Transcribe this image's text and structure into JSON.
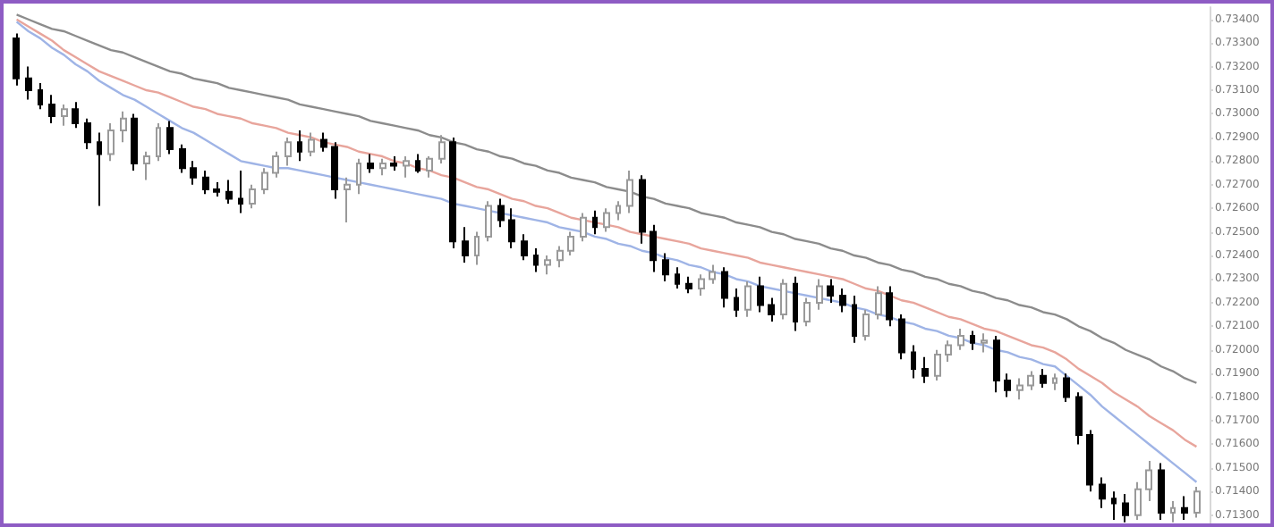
{
  "chart_data": {
    "type": "candlestick",
    "categories": [
      null,
      null,
      null,
      null,
      null,
      null,
      null,
      null,
      null,
      null,
      null,
      null,
      null,
      null,
      null,
      null,
      null,
      null,
      null,
      null,
      null,
      null,
      null,
      null,
      null,
      null,
      null,
      null,
      null,
      null,
      null,
      null,
      null,
      null,
      null,
      null,
      null,
      null,
      null,
      null,
      null,
      null,
      null,
      null,
      null,
      null,
      null,
      null,
      null,
      null,
      null,
      null,
      null,
      null,
      null,
      null,
      null,
      null,
      null,
      null,
      null,
      null,
      null,
      null,
      null,
      null,
      null,
      null,
      null,
      null,
      null,
      null,
      null,
      null,
      null,
      null,
      null,
      null,
      null,
      null,
      null,
      null,
      null,
      null,
      null,
      null,
      null,
      null,
      null,
      null,
      null,
      null,
      null,
      null,
      null,
      null,
      null,
      null,
      null,
      null,
      null
    ],
    "ohlc": [
      [
        0.7332,
        0.7334,
        0.7312,
        0.7315
      ],
      [
        0.7315,
        0.732,
        0.7306,
        0.731
      ],
      [
        0.731,
        0.7313,
        0.7302,
        0.7304
      ],
      [
        0.7304,
        0.7308,
        0.7296,
        0.7299
      ],
      [
        0.7299,
        0.7304,
        0.7295,
        0.7302
      ],
      [
        0.7302,
        0.7305,
        0.7294,
        0.7296
      ],
      [
        0.7296,
        0.7298,
        0.7285,
        0.7288
      ],
      [
        0.7288,
        0.7292,
        0.7261,
        0.7283
      ],
      [
        0.7283,
        0.7296,
        0.728,
        0.7293
      ],
      [
        0.7293,
        0.7301,
        0.7288,
        0.7298
      ],
      [
        0.7298,
        0.73,
        0.7276,
        0.7279
      ],
      [
        0.7279,
        0.7284,
        0.7272,
        0.7282
      ],
      [
        0.7282,
        0.7296,
        0.728,
        0.7294
      ],
      [
        0.7294,
        0.7297,
        0.7283,
        0.7285
      ],
      [
        0.7285,
        0.7287,
        0.7275,
        0.7277
      ],
      [
        0.7277,
        0.728,
        0.727,
        0.7273
      ],
      [
        0.7273,
        0.7276,
        0.7266,
        0.7268
      ],
      [
        0.7268,
        0.7271,
        0.7265,
        0.7267
      ],
      [
        0.7267,
        0.7272,
        0.7262,
        0.7264
      ],
      [
        0.7264,
        0.7276,
        0.7258,
        0.7262
      ],
      [
        0.7262,
        0.727,
        0.726,
        0.7268
      ],
      [
        0.7268,
        0.7277,
        0.7266,
        0.7275
      ],
      [
        0.7275,
        0.7284,
        0.7273,
        0.7282
      ],
      [
        0.7282,
        0.729,
        0.7278,
        0.7288
      ],
      [
        0.7288,
        0.7293,
        0.728,
        0.7284
      ],
      [
        0.7284,
        0.7292,
        0.7282,
        0.7289
      ],
      [
        0.7289,
        0.7292,
        0.7284,
        0.7286
      ],
      [
        0.7286,
        0.7288,
        0.7264,
        0.7268
      ],
      [
        0.7268,
        0.7273,
        0.7254,
        0.727
      ],
      [
        0.727,
        0.7281,
        0.7266,
        0.7279
      ],
      [
        0.7279,
        0.7283,
        0.7275,
        0.7277
      ],
      [
        0.7277,
        0.7281,
        0.7274,
        0.7279
      ],
      [
        0.7279,
        0.7282,
        0.7276,
        0.7278
      ],
      [
        0.7278,
        0.7282,
        0.7273,
        0.728
      ],
      [
        0.728,
        0.7283,
        0.7275,
        0.7276
      ],
      [
        0.7276,
        0.7282,
        0.7273,
        0.7281
      ],
      [
        0.7281,
        0.7291,
        0.7279,
        0.7288
      ],
      [
        0.7288,
        0.729,
        0.7243,
        0.7246
      ],
      [
        0.7246,
        0.7252,
        0.7237,
        0.724
      ],
      [
        0.724,
        0.725,
        0.7236,
        0.7248
      ],
      [
        0.7248,
        0.7263,
        0.7246,
        0.7261
      ],
      [
        0.7261,
        0.7264,
        0.7252,
        0.7255
      ],
      [
        0.7255,
        0.726,
        0.7243,
        0.7246
      ],
      [
        0.7246,
        0.7249,
        0.7238,
        0.724
      ],
      [
        0.724,
        0.7243,
        0.7233,
        0.7236
      ],
      [
        0.7236,
        0.724,
        0.7232,
        0.7238
      ],
      [
        0.7238,
        0.7244,
        0.7235,
        0.7242
      ],
      [
        0.7242,
        0.725,
        0.724,
        0.7248
      ],
      [
        0.7248,
        0.7258,
        0.7246,
        0.7256
      ],
      [
        0.7256,
        0.7259,
        0.7249,
        0.7252
      ],
      [
        0.7252,
        0.726,
        0.725,
        0.7258
      ],
      [
        0.7258,
        0.7263,
        0.7255,
        0.7261
      ],
      [
        0.7261,
        0.7276,
        0.7258,
        0.7272
      ],
      [
        0.7272,
        0.7274,
        0.7245,
        0.725
      ],
      [
        0.725,
        0.7253,
        0.7233,
        0.7238
      ],
      [
        0.7238,
        0.7241,
        0.7229,
        0.7232
      ],
      [
        0.7232,
        0.7235,
        0.7226,
        0.7228
      ],
      [
        0.7228,
        0.7231,
        0.7224,
        0.7226
      ],
      [
        0.7226,
        0.7232,
        0.7223,
        0.723
      ],
      [
        0.723,
        0.7236,
        0.7228,
        0.7233
      ],
      [
        0.7233,
        0.7235,
        0.7218,
        0.7222
      ],
      [
        0.7222,
        0.7226,
        0.7214,
        0.7217
      ],
      [
        0.7217,
        0.7229,
        0.7214,
        0.7227
      ],
      [
        0.7227,
        0.7231,
        0.7216,
        0.7219
      ],
      [
        0.7219,
        0.7222,
        0.7212,
        0.7215
      ],
      [
        0.7215,
        0.723,
        0.7213,
        0.7228
      ],
      [
        0.7228,
        0.7231,
        0.7208,
        0.7212
      ],
      [
        0.7212,
        0.7222,
        0.721,
        0.722
      ],
      [
        0.722,
        0.723,
        0.7217,
        0.7227
      ],
      [
        0.7227,
        0.723,
        0.722,
        0.7223
      ],
      [
        0.7223,
        0.7226,
        0.7216,
        0.7219
      ],
      [
        0.7219,
        0.7223,
        0.7203,
        0.7206
      ],
      [
        0.7206,
        0.7217,
        0.7204,
        0.7215
      ],
      [
        0.7215,
        0.7227,
        0.7213,
        0.7224
      ],
      [
        0.7224,
        0.7227,
        0.721,
        0.7213
      ],
      [
        0.7213,
        0.7215,
        0.7196,
        0.7199
      ],
      [
        0.7199,
        0.7202,
        0.7188,
        0.7192
      ],
      [
        0.7192,
        0.7197,
        0.7186,
        0.7189
      ],
      [
        0.7189,
        0.72,
        0.7187,
        0.7198
      ],
      [
        0.7198,
        0.7204,
        0.7195,
        0.7202
      ],
      [
        0.7202,
        0.7209,
        0.72,
        0.7206
      ],
      [
        0.7206,
        0.7208,
        0.72,
        0.7203
      ],
      [
        0.7203,
        0.7207,
        0.7199,
        0.7204
      ],
      [
        0.7204,
        0.7206,
        0.7182,
        0.7187
      ],
      [
        0.7187,
        0.719,
        0.718,
        0.7183
      ],
      [
        0.7183,
        0.7188,
        0.7179,
        0.7185
      ],
      [
        0.7185,
        0.7191,
        0.7183,
        0.7189
      ],
      [
        0.7189,
        0.7192,
        0.7184,
        0.7186
      ],
      [
        0.7186,
        0.719,
        0.7183,
        0.7188
      ],
      [
        0.7188,
        0.719,
        0.7178,
        0.718
      ],
      [
        0.718,
        0.7182,
        0.716,
        0.7164
      ],
      [
        0.7164,
        0.7166,
        0.714,
        0.7143
      ],
      [
        0.7143,
        0.7146,
        0.7133,
        0.7137
      ],
      [
        0.7137,
        0.714,
        0.7128,
        0.7135
      ],
      [
        0.7135,
        0.7139,
        0.7127,
        0.713
      ],
      [
        0.713,
        0.7144,
        0.7128,
        0.7141
      ],
      [
        0.7141,
        0.7153,
        0.7136,
        0.7149
      ],
      [
        0.7149,
        0.7152,
        0.7128,
        0.7131
      ],
      [
        0.7131,
        0.7136,
        0.7127,
        0.7133
      ],
      [
        0.7133,
        0.7138,
        0.7128,
        0.7131
      ],
      [
        0.7131,
        0.7142,
        0.7129,
        0.714
      ]
    ],
    "series": [
      {
        "type": "line",
        "color": "#8c8c8c",
        "values": [
          0.7342,
          0.734,
          0.7338,
          0.7336,
          0.7335,
          0.7333,
          0.7331,
          0.7329,
          0.7327,
          0.7326,
          0.7324,
          0.7322,
          0.732,
          0.7318,
          0.7317,
          0.7315,
          0.7314,
          0.7313,
          0.7311,
          0.731,
          0.7309,
          0.7308,
          0.7307,
          0.7306,
          0.7304,
          0.7303,
          0.7302,
          0.7301,
          0.73,
          0.7299,
          0.7297,
          0.7296,
          0.7295,
          0.7294,
          0.7293,
          0.7291,
          0.729,
          0.7288,
          0.7287,
          0.7285,
          0.7284,
          0.7282,
          0.7281,
          0.7279,
          0.7278,
          0.7276,
          0.7275,
          0.7273,
          0.7272,
          0.7271,
          0.7269,
          0.7268,
          0.7267,
          0.7265,
          0.7264,
          0.7262,
          0.7261,
          0.726,
          0.7258,
          0.7257,
          0.7256,
          0.7254,
          0.7253,
          0.7252,
          0.725,
          0.7249,
          0.7247,
          0.7246,
          0.7245,
          0.7243,
          0.7242,
          0.724,
          0.7239,
          0.7237,
          0.7236,
          0.7234,
          0.7233,
          0.7231,
          0.723,
          0.7228,
          0.7227,
          0.7225,
          0.7224,
          0.7222,
          0.7221,
          0.7219,
          0.7218,
          0.7216,
          0.7215,
          0.7213,
          0.721,
          0.7208,
          0.7205,
          0.7203,
          0.72,
          0.7198,
          0.7196,
          0.7193,
          0.7191,
          0.7188,
          0.7186
        ]
      },
      {
        "type": "line",
        "color": "#e8a59c",
        "values": [
          0.734,
          0.7337,
          0.7334,
          0.7331,
          0.7327,
          0.7324,
          0.7321,
          0.7318,
          0.7316,
          0.7314,
          0.7312,
          0.731,
          0.7309,
          0.7307,
          0.7305,
          0.7303,
          0.7302,
          0.73,
          0.7299,
          0.7298,
          0.7296,
          0.7295,
          0.7294,
          0.7292,
          0.7291,
          0.729,
          0.7288,
          0.7287,
          0.7286,
          0.7284,
          0.7283,
          0.7282,
          0.728,
          0.7279,
          0.7277,
          0.7276,
          0.7274,
          0.7273,
          0.7271,
          0.7269,
          0.7268,
          0.7266,
          0.7264,
          0.7263,
          0.7261,
          0.726,
          0.7258,
          0.7256,
          0.7255,
          0.7254,
          0.7253,
          0.7252,
          0.725,
          0.7249,
          0.7248,
          0.7247,
          0.7246,
          0.7245,
          0.7243,
          0.7242,
          0.7241,
          0.724,
          0.7239,
          0.7237,
          0.7236,
          0.7235,
          0.7234,
          0.7233,
          0.7232,
          0.7231,
          0.723,
          0.7228,
          0.7226,
          0.7225,
          0.7223,
          0.7221,
          0.722,
          0.7218,
          0.7216,
          0.7214,
          0.7213,
          0.7211,
          0.7209,
          0.7208,
          0.7206,
          0.7204,
          0.7202,
          0.7201,
          0.7199,
          0.7196,
          0.7192,
          0.7189,
          0.7186,
          0.7182,
          0.7179,
          0.7176,
          0.7172,
          0.7169,
          0.7166,
          0.7162,
          0.7159
        ]
      },
      {
        "type": "line",
        "color": "#9fb4e6",
        "values": [
          0.7339,
          0.7335,
          0.7332,
          0.7328,
          0.7325,
          0.7321,
          0.7318,
          0.7314,
          0.7311,
          0.7308,
          0.7306,
          0.7303,
          0.73,
          0.7297,
          0.7294,
          0.7292,
          0.7289,
          0.7286,
          0.7283,
          0.728,
          0.7279,
          0.7278,
          0.7277,
          0.7277,
          0.7276,
          0.7275,
          0.7274,
          0.7273,
          0.7272,
          0.7271,
          0.727,
          0.7269,
          0.7268,
          0.7267,
          0.7266,
          0.7265,
          0.7264,
          0.7262,
          0.7261,
          0.726,
          0.7259,
          0.7258,
          0.7257,
          0.7256,
          0.7255,
          0.7254,
          0.7252,
          0.7251,
          0.725,
          0.7248,
          0.7247,
          0.7245,
          0.7244,
          0.7242,
          0.7241,
          0.7239,
          0.7238,
          0.7236,
          0.7235,
          0.7233,
          0.7232,
          0.723,
          0.7229,
          0.7227,
          0.7226,
          0.7225,
          0.7224,
          0.7223,
          0.7222,
          0.7221,
          0.722,
          0.7218,
          0.7217,
          0.7215,
          0.7214,
          0.7212,
          0.7211,
          0.7209,
          0.7208,
          0.7206,
          0.7205,
          0.7203,
          0.7202,
          0.72,
          0.7199,
          0.7197,
          0.7196,
          0.7194,
          0.7193,
          0.7189,
          0.7185,
          0.7181,
          0.7176,
          0.7172,
          0.7168,
          0.7164,
          0.716,
          0.7156,
          0.7152,
          0.7148,
          0.7144
        ]
      }
    ],
    "ylim": [
      0.71265,
      0.73452
    ],
    "yticks": [
      {
        "value": 0.734,
        "label": "0.73400"
      },
      {
        "value": 0.733,
        "label": "0.73300"
      },
      {
        "value": 0.732,
        "label": "0.73200"
      },
      {
        "value": 0.731,
        "label": "0.73100"
      },
      {
        "value": 0.73,
        "label": "0.73000"
      },
      {
        "value": 0.729,
        "label": "0.72900"
      },
      {
        "value": 0.728,
        "label": "0.72800"
      },
      {
        "value": 0.727,
        "label": "0.72700"
      },
      {
        "value": 0.726,
        "label": "0.72600"
      },
      {
        "value": 0.725,
        "label": "0.72500"
      },
      {
        "value": 0.724,
        "label": "0.72400"
      },
      {
        "value": 0.723,
        "label": "0.72300"
      },
      {
        "value": 0.722,
        "label": "0.72200"
      },
      {
        "value": 0.721,
        "label": "0.72100"
      },
      {
        "value": 0.72,
        "label": "0.72000"
      },
      {
        "value": 0.719,
        "label": "0.71900"
      },
      {
        "value": 0.718,
        "label": "0.71800"
      },
      {
        "value": 0.717,
        "label": "0.71700"
      },
      {
        "value": 0.716,
        "label": "0.71600"
      },
      {
        "value": 0.715,
        "label": "0.71500"
      },
      {
        "value": 0.714,
        "label": "0.71400"
      },
      {
        "value": 0.713,
        "label": "0.71300"
      }
    ],
    "tick_labels": "y"
  }
}
